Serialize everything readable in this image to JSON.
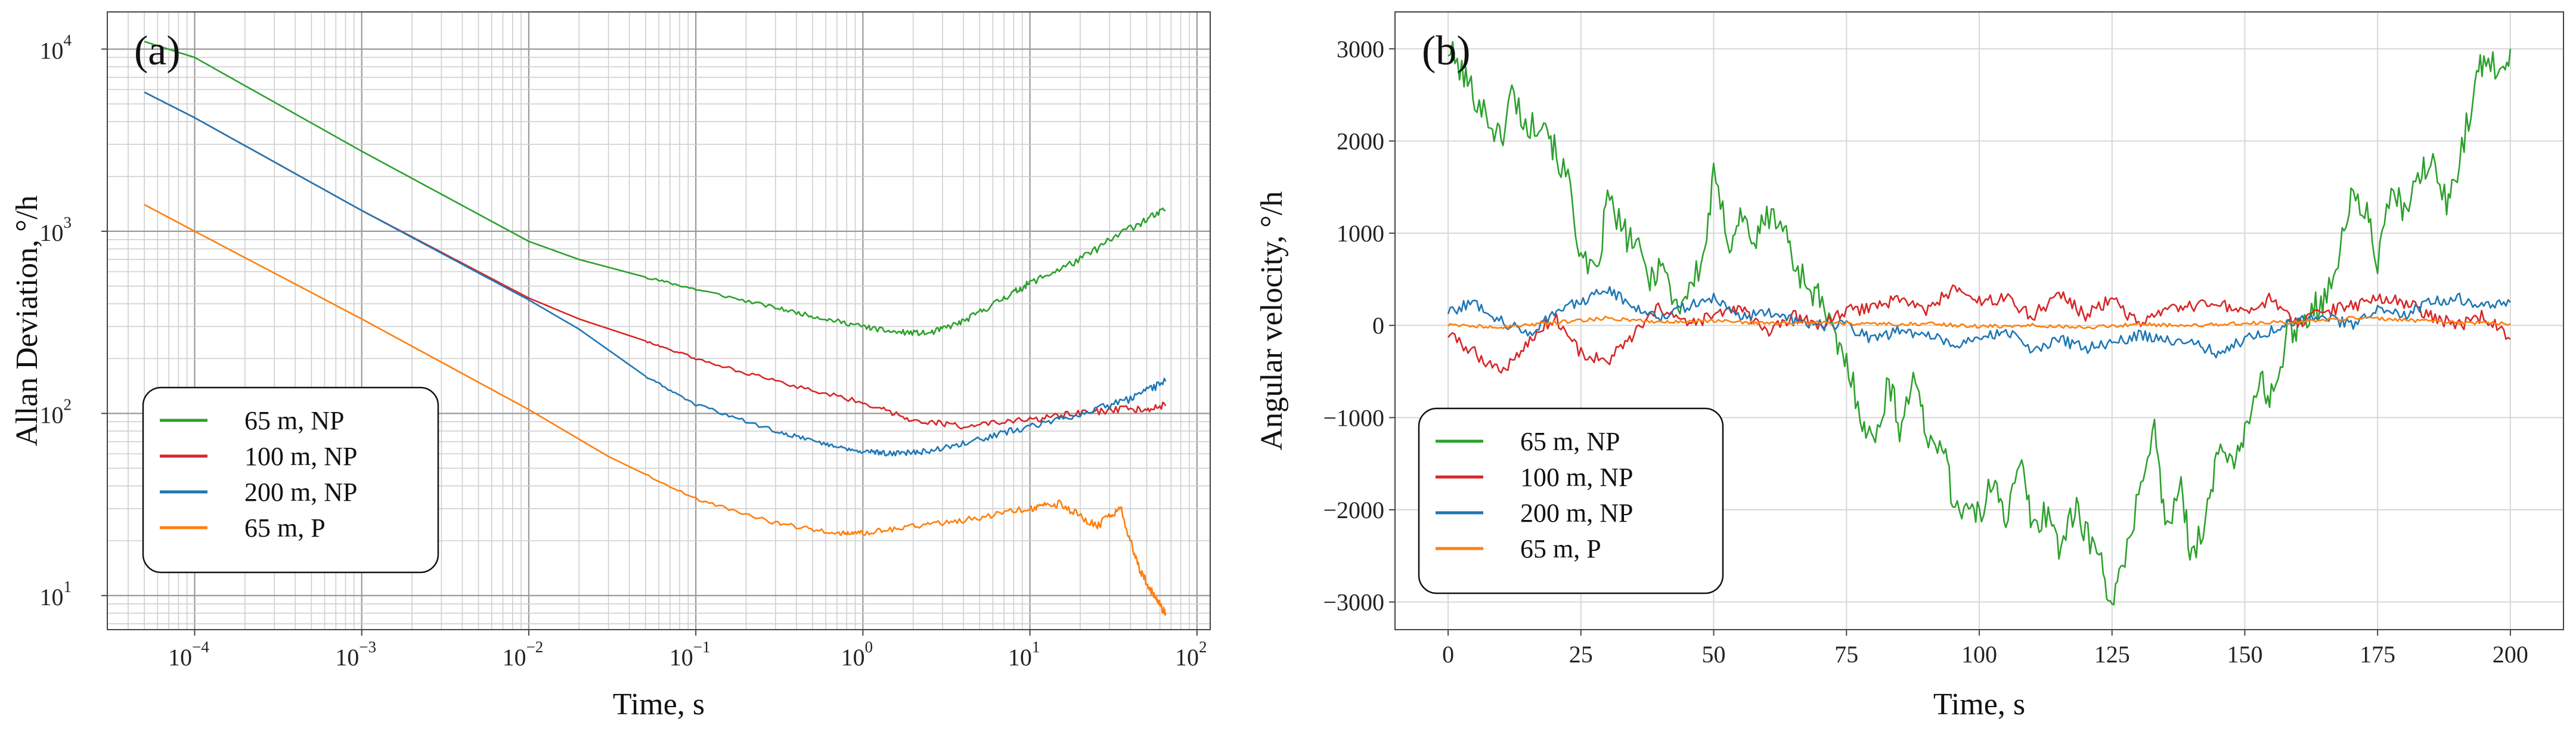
{
  "chart_data": [
    {
      "panel_label": "(a)",
      "type": "line",
      "xscale": "log",
      "yscale": "log",
      "xlabel": "Time, s",
      "ylabel": "Allan Deviation, °/h",
      "xlim": [
        3e-05,
        120
      ],
      "ylim": [
        6.5,
        16000
      ],
      "grid": "major and minor",
      "legend": "lower-left",
      "x_tick_labels": [
        {
          "value": 0.0001,
          "base": "10",
          "exp": "−4"
        },
        {
          "value": 0.001,
          "base": "10",
          "exp": "−3"
        },
        {
          "value": 0.01,
          "base": "10",
          "exp": "−2"
        },
        {
          "value": 0.1,
          "base": "10",
          "exp": "−1"
        },
        {
          "value": 1,
          "base": "10",
          "exp": "0"
        },
        {
          "value": 10,
          "base": "10",
          "exp": "1"
        },
        {
          "value": 100,
          "base": "10",
          "exp": "2"
        }
      ],
      "y_tick_labels": [
        {
          "value": 10,
          "base": "10",
          "exp": "1"
        },
        {
          "value": 100,
          "base": "10",
          "exp": "2"
        },
        {
          "value": 1000,
          "base": "10",
          "exp": "3"
        },
        {
          "value": 10000,
          "base": "10",
          "exp": "4"
        }
      ],
      "series": [
        {
          "name": "65 m, NP",
          "color": "#2ca02c",
          "x": [
            5e-05,
            0.0001,
            0.001,
            0.01,
            0.02,
            0.05,
            0.1,
            0.3,
            0.6,
            1.0,
            1.5,
            2.5,
            4.0,
            7.0,
            10.0,
            20.0,
            40.0,
            65.0
          ],
          "y": [
            11000,
            9000,
            2750,
            880,
            700,
            560,
            480,
            380,
            330,
            300,
            280,
            275,
            320,
            430,
            520,
            700,
            1050,
            1300
          ]
        },
        {
          "name": "100 m, NP",
          "color": "#d62728",
          "x": [
            5e-05,
            0.0001,
            0.001,
            0.01,
            0.02,
            0.05,
            0.1,
            0.3,
            1.0,
            2.0,
            4.0,
            10.0,
            20.0,
            40.0,
            65.0
          ],
          "y": [
            5800,
            4200,
            1300,
            430,
            330,
            250,
            200,
            150,
            115,
            92,
            85,
            92,
            100,
            105,
            110
          ]
        },
        {
          "name": "200 m, NP",
          "color": "#1f77b4",
          "x": [
            5e-05,
            0.0001,
            0.001,
            0.01,
            0.02,
            0.05,
            0.1,
            0.3,
            0.6,
            1.0,
            1.5,
            2.5,
            5.0,
            10.0,
            20.0,
            40.0,
            65.0
          ],
          "y": [
            5800,
            4200,
            1300,
            420,
            290,
            160,
            112,
            80,
            68,
            62,
            60,
            62,
            72,
            85,
            100,
            120,
            150
          ]
        },
        {
          "name": "65 m, P",
          "color": "#ff7f0e",
          "x": [
            5e-05,
            0.0001,
            0.001,
            0.01,
            0.03,
            0.1,
            0.3,
            0.7,
            1.0,
            2.0,
            4.0,
            10.0,
            15.0,
            25.0,
            35.0,
            45.0,
            55.0,
            65.0
          ],
          "y": [
            1400,
            1000,
            330,
            105,
            58,
            34,
            25,
            22,
            22,
            24,
            26,
            30,
            32,
            24,
            30,
            14,
            10,
            8
          ]
        }
      ]
    },
    {
      "panel_label": "(b)",
      "type": "line",
      "xlabel": "Time, s",
      "ylabel": "Angular velocity, °/h",
      "xlim": [
        -10,
        210
      ],
      "ylim": [
        -3300,
        3400
      ],
      "xticks": [
        0,
        25,
        50,
        75,
        100,
        125,
        150,
        175,
        200
      ],
      "yticks": [
        -3000,
        -2000,
        -1000,
        0,
        1000,
        2000,
        3000
      ],
      "grid": "major",
      "legend": "lower-left",
      "series": [
        {
          "name": "65 m, NP",
          "color": "#2ca02c",
          "x": [
            0,
            3,
            5,
            8,
            10,
            12,
            15,
            18,
            20,
            23,
            25,
            28,
            30,
            33,
            35,
            38,
            40,
            43,
            45,
            48,
            50,
            53,
            55,
            58,
            60,
            63,
            65,
            68,
            70,
            73,
            75,
            78,
            80,
            83,
            85,
            88,
            90,
            93,
            95,
            98,
            100,
            103,
            105,
            108,
            110,
            113,
            115,
            118,
            120,
            123,
            125,
            127,
            130,
            133,
            135,
            138,
            140,
            143,
            145,
            148,
            150,
            153,
            155,
            158,
            160,
            163,
            165,
            168,
            170,
            173,
            175,
            178,
            180,
            183,
            185,
            188,
            190,
            193,
            195,
            198,
            200
          ],
          "y": [
            3000,
            2700,
            2500,
            2200,
            2000,
            2550,
            2100,
            2300,
            1900,
            1500,
            700,
            500,
            1400,
            1000,
            900,
            500,
            700,
            200,
            350,
            700,
            1600,
            900,
            1200,
            900,
            1200,
            1100,
            700,
            400,
            300,
            -200,
            -400,
            -1000,
            -1300,
            -600,
            -1100,
            -500,
            -1300,
            -1200,
            -1900,
            -2000,
            -2100,
            -1600,
            -2100,
            -1500,
            -2200,
            -2000,
            -2400,
            -2000,
            -2200,
            -2600,
            -3000,
            -2700,
            -1800,
            -1100,
            -2200,
            -1800,
            -2500,
            -2000,
            -1400,
            -1400,
            -1200,
            -600,
            -800,
            -100,
            0,
            200,
            300,
            800,
            1400,
            1200,
            700,
            1500,
            1200,
            1600,
            1800,
            1300,
            1700,
            2500,
            2900,
            2800,
            3000
          ]
        },
        {
          "name": "100 m, NP",
          "color": "#d62728",
          "x": [
            0,
            5,
            10,
            15,
            20,
            25,
            30,
            35,
            40,
            45,
            50,
            55,
            60,
            65,
            70,
            75,
            80,
            85,
            90,
            95,
            100,
            105,
            110,
            115,
            120,
            125,
            130,
            135,
            140,
            145,
            150,
            155,
            160,
            165,
            170,
            175,
            180,
            185,
            190,
            195,
            200
          ],
          "y": [
            -100,
            -300,
            -500,
            -200,
            100,
            -300,
            -400,
            -100,
            200,
            0,
            100,
            200,
            -100,
            100,
            0,
            150,
            200,
            300,
            150,
            400,
            250,
            300,
            100,
            350,
            100,
            300,
            0,
            150,
            200,
            250,
            100,
            300,
            0,
            150,
            200,
            300,
            250,
            100,
            0,
            100,
            -150
          ]
        },
        {
          "name": "200 m, NP",
          "color": "#1f77b4",
          "x": [
            0,
            5,
            10,
            15,
            20,
            25,
            30,
            35,
            40,
            45,
            50,
            55,
            60,
            65,
            70,
            75,
            80,
            85,
            90,
            95,
            100,
            105,
            110,
            115,
            120,
            125,
            130,
            135,
            140,
            145,
            150,
            155,
            160,
            165,
            170,
            175,
            180,
            185,
            190,
            195,
            200
          ],
          "y": [
            150,
            250,
            50,
            -100,
            150,
            250,
            400,
            200,
            100,
            200,
            300,
            100,
            150,
            50,
            0,
            0,
            -150,
            -50,
            -100,
            -200,
            -150,
            -50,
            -300,
            -150,
            -250,
            -200,
            -100,
            -150,
            -200,
            -300,
            -150,
            -50,
            50,
            100,
            0,
            200,
            100,
            250,
            300,
            200,
            250
          ]
        },
        {
          "name": "65 m, P",
          "color": "#ff7f0e",
          "x": [
            0,
            10,
            20,
            30,
            40,
            50,
            60,
            70,
            80,
            90,
            100,
            110,
            120,
            130,
            140,
            150,
            160,
            170,
            180,
            190,
            200
          ],
          "y": [
            0,
            -20,
            30,
            80,
            40,
            50,
            20,
            30,
            10,
            20,
            -10,
            0,
            -20,
            10,
            0,
            20,
            40,
            80,
            60,
            30,
            20
          ]
        }
      ]
    }
  ]
}
